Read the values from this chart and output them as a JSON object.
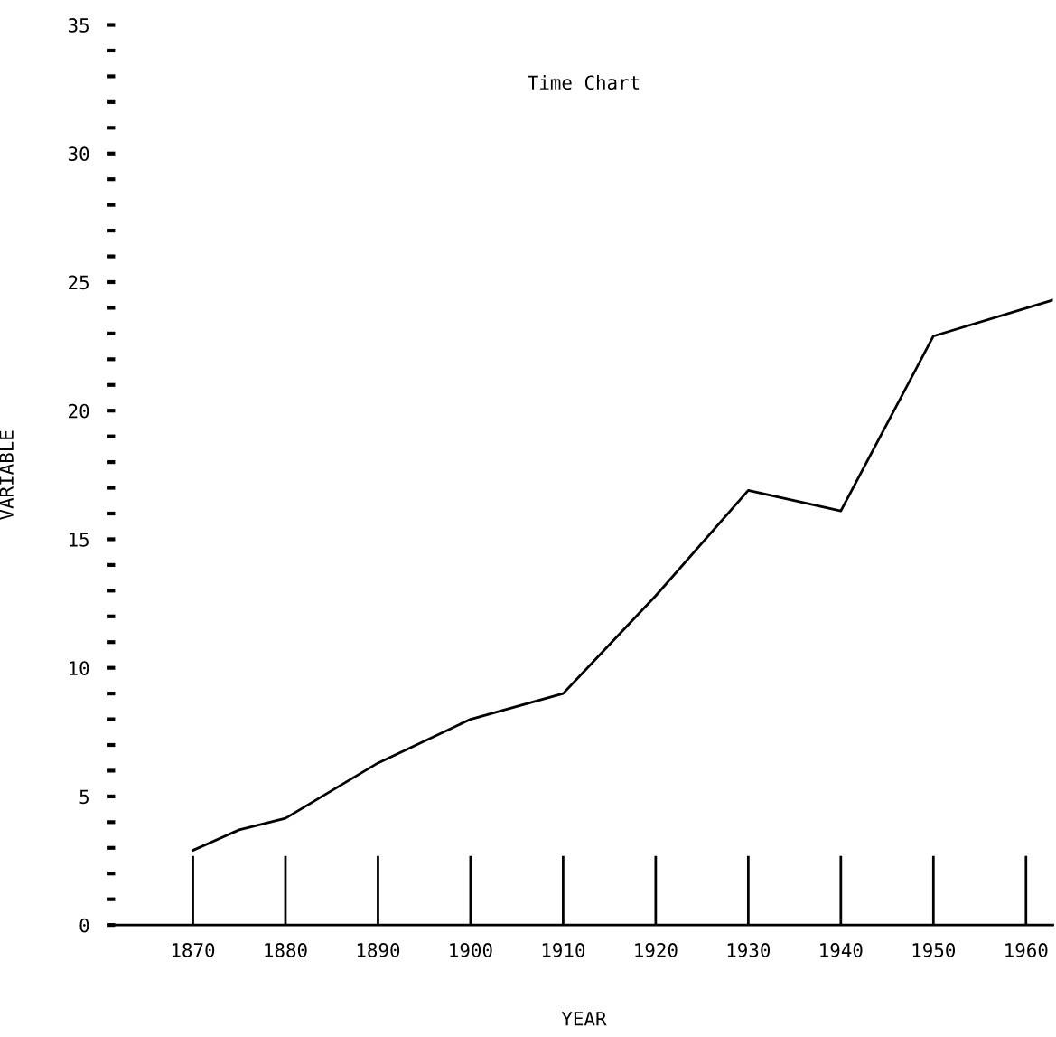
{
  "chart_data": {
    "type": "line",
    "title": "Time Chart",
    "xlabel": "YEAR",
    "ylabel": "VARIABLE",
    "x": [
      1870,
      1875,
      1880,
      1890,
      1900,
      1905,
      1910,
      1920,
      1930,
      1940,
      1950,
      1962.9
    ],
    "series": [
      {
        "color": "#000000",
        "values": [
          2.9,
          3.7,
          4.15,
          6.3,
          8.0,
          8.5,
          9.0,
          12.8,
          16.9,
          16.1,
          22.9,
          24.3
        ]
      }
    ],
    "xlim": [
      1861.6,
      1962.9
    ],
    "xticks": [
      1870,
      1880,
      1890,
      1900,
      1910,
      1920,
      1930,
      1940,
      1950,
      1960
    ],
    "ylim": [
      0,
      35
    ],
    "yticks": [
      0,
      {
        "value": 1,
        "label": null
      },
      {
        "value": 2,
        "label": null
      },
      {
        "value": 3,
        "label": null
      },
      {
        "value": 4,
        "label": null
      },
      5,
      {
        "value": 6,
        "label": null
      },
      {
        "value": 7,
        "label": null
      },
      {
        "value": 8,
        "label": null
      },
      {
        "value": 9,
        "label": null
      },
      10,
      {
        "value": 11,
        "label": null
      },
      {
        "value": 12,
        "label": null
      },
      {
        "value": 13,
        "label": null
      },
      {
        "value": 14,
        "label": null
      },
      15,
      {
        "value": 16,
        "label": null
      },
      {
        "value": 17,
        "label": null
      },
      {
        "value": 18,
        "label": null
      },
      {
        "value": 19,
        "label": null
      },
      20,
      {
        "value": 21,
        "label": null
      },
      {
        "value": 22,
        "label": null
      },
      {
        "value": 23,
        "label": null
      },
      {
        "value": 24,
        "label": null
      },
      25,
      {
        "value": 26,
        "label": null
      },
      {
        "value": 27,
        "label": null
      },
      {
        "value": 28,
        "label": null
      },
      {
        "value": 29,
        "label": null
      },
      30,
      {
        "value": 31,
        "label": null
      },
      {
        "value": 32,
        "label": null
      },
      {
        "value": 33,
        "label": null
      },
      {
        "value": 34,
        "label": null
      },
      35
    ],
    "grid": false,
    "marker": "none",
    "line_style": "solid",
    "legend": false
  }
}
